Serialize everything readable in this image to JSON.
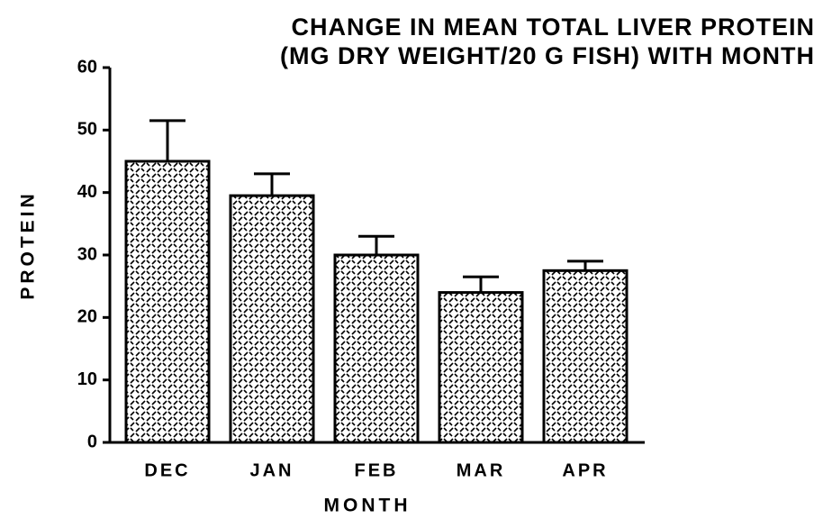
{
  "chart_data": {
    "type": "bar",
    "title": [
      "CHANGE IN MEAN TOTAL LIVER PROTEIN",
      "(MG DRY WEIGHT/20 G FISH) WITH MONTH"
    ],
    "x_label": "MONTH",
    "y_label": "PROTEIN",
    "categories": [
      "DEC",
      "JAN",
      "FEB",
      "MAR",
      "APR"
    ],
    "values": [
      45,
      39.5,
      30,
      24,
      27.5
    ],
    "errors": [
      6.5,
      3.5,
      3,
      2.5,
      1.5
    ],
    "color": "#000000",
    "ylim": [
      0,
      60
    ],
    "yticks": [
      0,
      10,
      20,
      30,
      40,
      50,
      60
    ],
    "grid": false
  }
}
